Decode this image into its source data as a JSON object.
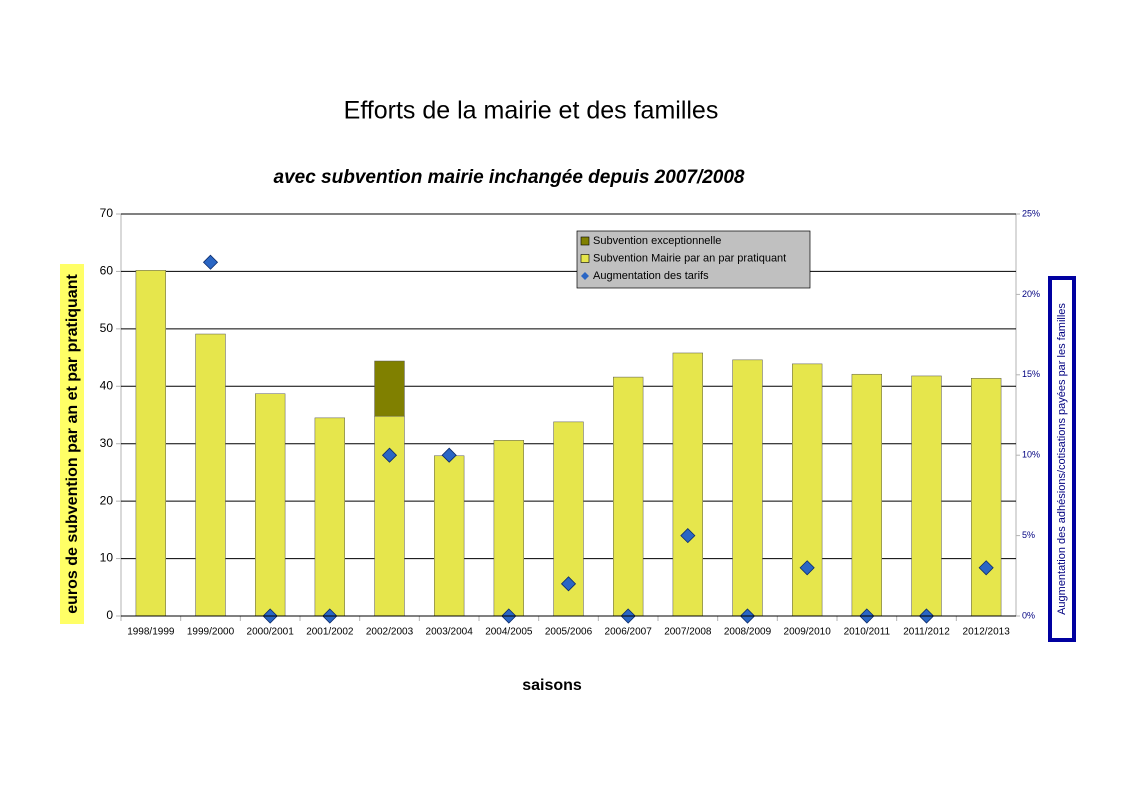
{
  "chart_data": {
    "type": "bar",
    "title": "Efforts de la mairie et des familles",
    "subtitle": "avec subvention mairie inchangée depuis 2007/2008",
    "x_label": "saisons",
    "y_label": "euros de subvention par an et par pratiquant",
    "y2_label": "Augmentation des adhésions/cotisations payées par les familles",
    "categories": [
      "1998/1999",
      "1999/2000",
      "2000/2001",
      "2001/2002",
      "2002/2003",
      "2003/2004",
      "2004/2005",
      "2005/2006",
      "2006/2007",
      "2007/2008",
      "2008/2009",
      "2009/2010",
      "2010/2011",
      "2011/2012",
      "2012/2013"
    ],
    "series": [
      {
        "name": "Subvention exceptionnelle",
        "color": "#808000",
        "stack_on": 1,
        "values": [
          null,
          null,
          null,
          null,
          9.6,
          null,
          null,
          null,
          null,
          null,
          null,
          null,
          null,
          null,
          null
        ]
      },
      {
        "name": "Subvention Mairie par an par pratiquant",
        "color": "#e6e64c",
        "values": [
          60.2,
          49.1,
          38.7,
          34.5,
          34.8,
          27.9,
          30.6,
          33.8,
          41.6,
          45.8,
          44.6,
          43.9,
          42.1,
          41.8,
          41.4
        ]
      },
      {
        "name": "Augmentation des tarifs",
        "color": "#2a66c4",
        "axis": "y2",
        "type": "scatter",
        "values": [
          null,
          22,
          0,
          0,
          10,
          10,
          0,
          2,
          0,
          5,
          0,
          3,
          0,
          0,
          3
        ]
      }
    ],
    "ylim": [
      0,
      70
    ],
    "yticks": [
      0,
      10,
      20,
      30,
      40,
      50,
      60,
      70
    ],
    "y2lim": [
      0,
      25
    ],
    "y2ticks": [
      {
        "value": 0,
        "label": "0%"
      },
      {
        "value": 5,
        "label": "5%"
      },
      {
        "value": 10,
        "label": "10%"
      },
      {
        "value": 15,
        "label": "15%"
      },
      {
        "value": 20,
        "label": "20%"
      },
      {
        "value": 25,
        "label": "25%"
      }
    ],
    "grid": true
  }
}
